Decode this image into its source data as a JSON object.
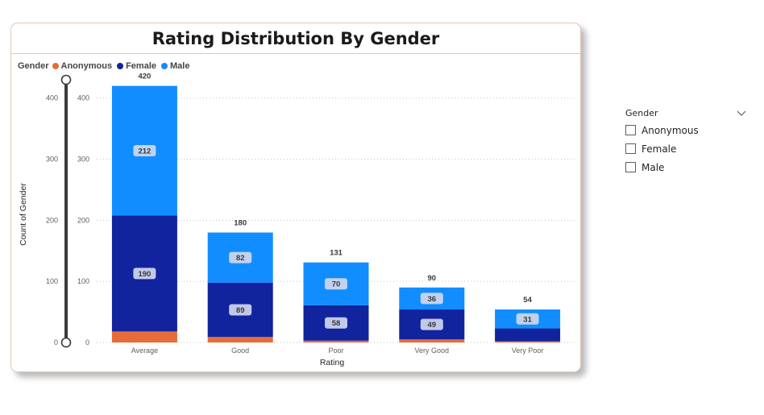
{
  "title": "Rating Distribution By Gender",
  "legend": {
    "title": "Gender",
    "items": [
      {
        "label": "Anonymous",
        "color": "#E66C37"
      },
      {
        "label": "Female",
        "color": "#12239E"
      },
      {
        "label": "Male",
        "color": "#118DFF"
      }
    ]
  },
  "slicer": {
    "title": "Gender",
    "options": [
      "Anonymous",
      "Female",
      "Male"
    ]
  },
  "chart_data": {
    "type": "bar",
    "stacked": true,
    "categories": [
      "Average",
      "Good",
      "Poor",
      "Very Good",
      "Very Poor"
    ],
    "series": [
      {
        "name": "Anonymous",
        "color": "#E66C37",
        "values": [
          18,
          9,
          3,
          5,
          2
        ]
      },
      {
        "name": "Female",
        "color": "#12239E",
        "values": [
          190,
          89,
          58,
          49,
          21
        ]
      },
      {
        "name": "Male",
        "color": "#118DFF",
        "values": [
          212,
          82,
          70,
          36,
          31
        ]
      }
    ],
    "totals": [
      420,
      180,
      131,
      90,
      54
    ],
    "series_labels": {
      "Female": [
        "190",
        "89",
        "58",
        "49",
        ""
      ],
      "Male": [
        "212",
        "82",
        "70",
        "36",
        "31"
      ]
    },
    "xlabel": "Rating",
    "ylabel": "Count of Gender",
    "ylim": [
      0,
      430
    ],
    "yticks": [
      0,
      100,
      200,
      300,
      400
    ],
    "grid": true,
    "legend_position": "top-left"
  }
}
